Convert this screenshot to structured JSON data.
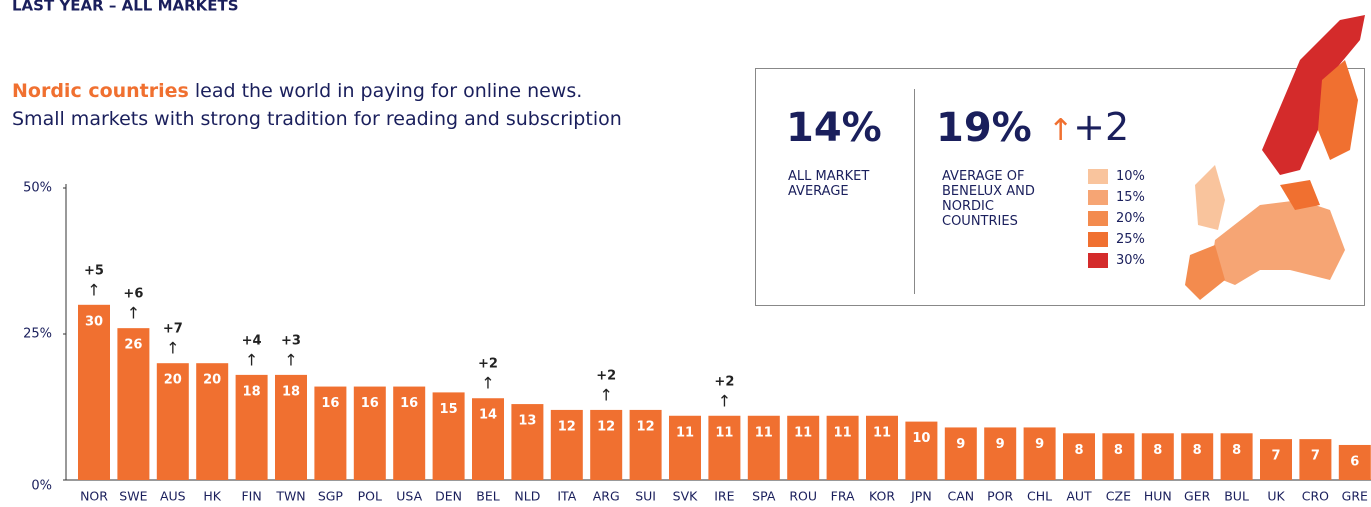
{
  "chart_data": {
    "type": "bar",
    "title": "LAST YEAR – ALL MARKETS",
    "subtitle_highlight": "Nordic countries",
    "subtitle": " lead the world in paying for online news.",
    "subtitle_line2": "Small markets with strong tradition for reading and subscription",
    "categories": [
      "NOR",
      "SWE",
      "AUS",
      "HK",
      "FIN",
      "TWN",
      "SGP",
      "POL",
      "USA",
      "DEN",
      "BEL",
      "NLD",
      "ITA",
      "ARG",
      "SUI",
      "SVK",
      "IRE",
      "SPA",
      "ROU",
      "FRA",
      "KOR",
      "JPN",
      "CAN",
      "POR",
      "CHL",
      "AUT",
      "CZE",
      "HUN",
      "GER",
      "BUL",
      "UK",
      "CRO",
      "GRE"
    ],
    "values": [
      30,
      26,
      20,
      20,
      18,
      18,
      16,
      16,
      16,
      15,
      14,
      13,
      12,
      12,
      12,
      11,
      11,
      11,
      11,
      11,
      11,
      10,
      9,
      9,
      9,
      8,
      8,
      8,
      8,
      8,
      7,
      7,
      6
    ],
    "changes": [
      "+5",
      "+6",
      "+7",
      null,
      "+4",
      "+3",
      null,
      null,
      null,
      null,
      "+2",
      null,
      null,
      "+2",
      null,
      null,
      "+2",
      null,
      null,
      null,
      null,
      null,
      null,
      null,
      null,
      null,
      null,
      null,
      null,
      null,
      null,
      null,
      null
    ],
    "color": "#f07030",
    "ylim": [
      0,
      50
    ],
    "yticks": [
      {
        "value": 0,
        "label": "0%"
      },
      {
        "value": 25,
        "label": "25%"
      },
      {
        "value": 50,
        "label": "50%"
      }
    ],
    "callout": {
      "all_value": "14%",
      "all_label": "ALL MARKET AVERAGE",
      "nordic_value": "19%",
      "nordic_change": "+2",
      "nordic_label": "AVERAGE OF BENELUX AND NORDIC COUNTRIES",
      "legend": [
        {
          "label": "10%",
          "color": "#f9c49d"
        },
        {
          "label": "15%",
          "color": "#f6a574"
        },
        {
          "label": "20%",
          "color": "#f38b4e"
        },
        {
          "label": "25%",
          "color": "#f07030"
        },
        {
          "label": "30%",
          "color": "#d42b2b"
        }
      ]
    }
  }
}
